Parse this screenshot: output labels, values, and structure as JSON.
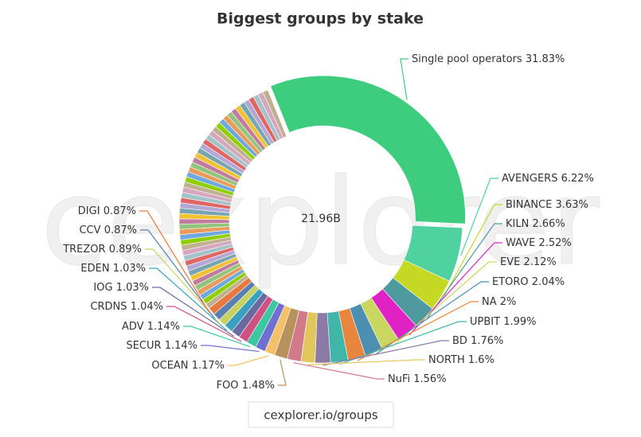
{
  "chart_data": {
    "type": "pie",
    "title": "Biggest groups by stake",
    "center_label": "21.96B",
    "watermark": "cexplorer",
    "source": "cexplorer.io/groups",
    "categories": [
      "Single pool operators",
      "AVENGERS",
      "BINANCE",
      "KILN",
      "WAVE",
      "EVE",
      "ETORO",
      "NA",
      "UPBIT",
      "BD",
      "NORTH",
      "NuFi",
      "FOO",
      "OCEAN",
      "SECUR",
      "ADV",
      "CRDNS",
      "IOG",
      "EDEN",
      "TREZOR",
      "CCV",
      "DIGI",
      null,
      null,
      null,
      null,
      null,
      null,
      null,
      null,
      null,
      null,
      null,
      null,
      null,
      null,
      null,
      null,
      null,
      null,
      null,
      null,
      null,
      null,
      null,
      null,
      null,
      null,
      null,
      null,
      null,
      null,
      null,
      null,
      null,
      null,
      null,
      null,
      null,
      null,
      null,
      null,
      null,
      null,
      null,
      null,
      null,
      null,
      null,
      null,
      null
    ],
    "values": [
      31.83,
      6.22,
      3.63,
      2.66,
      2.52,
      2.12,
      2.04,
      2,
      1.99,
      1.76,
      1.6,
      1.56,
      1.48,
      1.17,
      1.14,
      1.14,
      1.04,
      1.03,
      1.03,
      0.89,
      0.87,
      0.87,
      0.6,
      0.6,
      0.6,
      0.6,
      0.6,
      0.6,
      0.6,
      0.6,
      0.6,
      0.6,
      0.6,
      0.6,
      0.6,
      0.6,
      0.6,
      0.6,
      0.6,
      0.6,
      0.6,
      0.6,
      0.6,
      0.6,
      0.6,
      0.6,
      0.6,
      0.6,
      0.6,
      0.6,
      0.6,
      0.6,
      0.6,
      0.6,
      0.6,
      0.6,
      0.6,
      0.6,
      0.6,
      0.6,
      0.6,
      0.6,
      0.6,
      0.6,
      0.6,
      0.6,
      0.6,
      0.6,
      0.6,
      0.6,
      0.6
    ],
    "value_labels": [
      "31.83%",
      "6.22%",
      "3.63%",
      "2.66%",
      "2.52%",
      "2.12%",
      "2.04%",
      "2%",
      "1.99%",
      "1.76%",
      "1.6%",
      "1.56%",
      "1.48%",
      "1.17%",
      "1.14%",
      "1.14%",
      "1.04%",
      "1.03%",
      "1.03%",
      "0.89%",
      "0.87%",
      "0.87%",
      null,
      null,
      null,
      null,
      null,
      null,
      null,
      null,
      null,
      null,
      null,
      null,
      null,
      null,
      null,
      null,
      null,
      null,
      null,
      null,
      null,
      null,
      null,
      null,
      null,
      null,
      null,
      null,
      null,
      null,
      null,
      null,
      null,
      null,
      null,
      null,
      null,
      null,
      null,
      null,
      null,
      null,
      null,
      null,
      null,
      null,
      null,
      null,
      null
    ],
    "colors": [
      "#3ecc7e",
      "#4fd1a0",
      "#c5d924",
      "#4f9a9e",
      "#e021c4",
      "#c9d65f",
      "#4c8fb0",
      "#e8853f",
      "#3fb6a8",
      "#8b7aa6",
      "#e0c65c",
      "#d07a8a",
      "#b8925c",
      "#f5c06a",
      "#6f6fd0",
      "#3dc7a0",
      "#d05080",
      "#6a6aa0",
      "#3ba0c0",
      "#c8d060",
      "#5a80b0",
      "#e87840"
    ],
    "palette": [
      "#6fa8dc",
      "#e89b5a",
      "#93c47d",
      "#c27ba0",
      "#f1c232",
      "#76a5af",
      "#b4a7d6",
      "#e06666",
      "#a2c4c9",
      "#d5a6bd",
      "#c0b090",
      "#8fce00"
    ]
  }
}
